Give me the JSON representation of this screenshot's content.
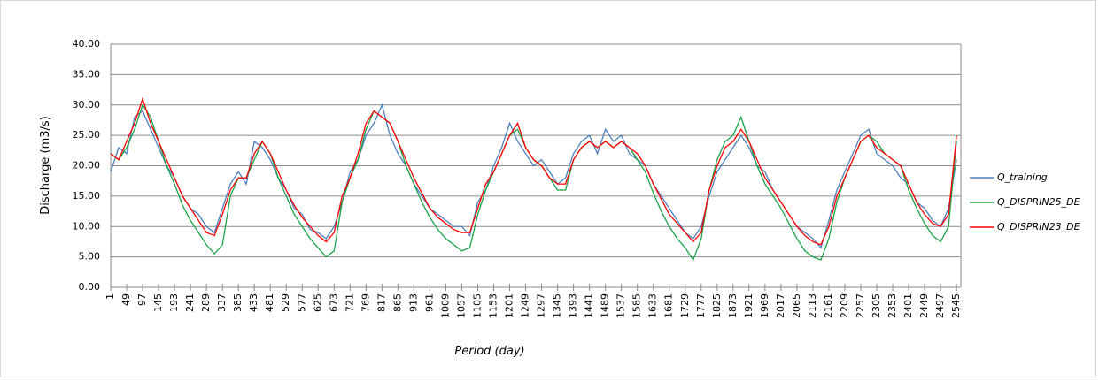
{
  "chart_data": {
    "type": "line",
    "y_label": "Discharge (m3/s)",
    "x_label": "Period (day)",
    "x": [
      1,
      25,
      49,
      73,
      97,
      121,
      145,
      169,
      193,
      217,
      241,
      265,
      289,
      313,
      337,
      361,
      385,
      409,
      433,
      457,
      481,
      505,
      529,
      553,
      577,
      601,
      625,
      649,
      673,
      697,
      721,
      745,
      769,
      793,
      817,
      841,
      865,
      889,
      913,
      937,
      961,
      985,
      1009,
      1033,
      1057,
      1081,
      1105,
      1129,
      1153,
      1177,
      1201,
      1225,
      1249,
      1273,
      1297,
      1321,
      1345,
      1369,
      1393,
      1417,
      1441,
      1465,
      1489,
      1513,
      1537,
      1561,
      1585,
      1609,
      1633,
      1657,
      1681,
      1705,
      1729,
      1753,
      1777,
      1801,
      1825,
      1849,
      1873,
      1897,
      1921,
      1945,
      1969,
      1993,
      2017,
      2041,
      2065,
      2089,
      2113,
      2137,
      2161,
      2185,
      2209,
      2233,
      2257,
      2281,
      2305,
      2329,
      2353,
      2377,
      2401,
      2425,
      2449,
      2473,
      2497,
      2521,
      2545
    ],
    "series": [
      {
        "name": "Q_training",
        "color": "#4f81bd",
        "values": [
          19,
          23,
          22,
          28,
          29,
          26,
          23,
          20,
          18,
          15,
          13,
          12,
          10,
          9,
          13,
          17,
          19,
          17,
          24,
          23,
          21,
          18,
          16,
          13,
          12,
          9.5,
          9,
          8,
          10,
          14,
          19,
          21,
          25,
          27,
          30,
          25,
          22,
          20,
          17,
          15,
          13,
          12,
          11,
          10,
          10,
          8.5,
          14,
          16,
          20,
          23,
          27,
          24,
          22,
          20,
          21,
          19,
          17,
          18,
          22,
          24,
          25,
          22,
          26,
          24,
          25,
          22,
          21,
          20,
          17,
          15,
          13,
          11,
          9,
          8,
          10,
          15,
          19,
          21,
          23,
          25,
          23,
          20,
          19,
          16,
          14,
          12,
          10,
          9,
          8,
          6.5,
          11,
          16,
          19,
          22,
          25,
          26,
          22,
          21,
          20,
          18,
          17,
          14,
          13,
          11,
          10,
          13,
          21
        ]
      },
      {
        "name": "Q_DISPRIN25_DE",
        "color": "#1aa34a",
        "values": [
          22,
          21,
          23,
          26,
          30,
          28,
          24,
          20,
          17,
          13.5,
          11,
          9,
          7,
          5.5,
          7,
          15,
          18,
          18,
          21,
          24,
          22,
          18,
          15,
          12,
          10,
          8,
          6.5,
          5,
          6,
          14,
          18,
          21,
          26,
          29,
          28,
          27,
          24,
          20,
          17,
          14,
          11.5,
          9.5,
          8,
          7,
          6,
          6.5,
          12,
          16,
          19,
          22,
          25,
          26,
          23,
          21,
          20,
          18,
          16,
          16,
          21,
          23,
          24,
          23,
          24,
          23,
          24,
          23,
          21,
          19,
          15.5,
          12.5,
          10,
          8,
          6.5,
          4.5,
          8,
          16,
          21,
          24,
          25,
          28,
          24,
          20,
          17,
          15,
          13,
          10.5,
          8,
          6,
          5,
          4.5,
          8,
          14,
          18,
          21,
          24,
          25,
          24,
          22,
          21,
          20,
          16,
          13,
          10.5,
          8.5,
          7.5,
          10,
          24
        ]
      },
      {
        "name": "Q_DISPRIN23_DE",
        "color": "#ff0000",
        "values": [
          22,
          21,
          24,
          27,
          31,
          27,
          24,
          21,
          18,
          15,
          13,
          11,
          9,
          8.5,
          12,
          16,
          18,
          18,
          22,
          24,
          22,
          19,
          16,
          13.5,
          11.5,
          10,
          8.5,
          7.5,
          9,
          15,
          18,
          22,
          27,
          29,
          28,
          27,
          24,
          21,
          18,
          15.5,
          13,
          11.5,
          10.5,
          9.5,
          9,
          9,
          13,
          17,
          19,
          22,
          25,
          27,
          23,
          21,
          20,
          18,
          17,
          17,
          21,
          23,
          24,
          23,
          24,
          23,
          24,
          23,
          22,
          20,
          17,
          14.5,
          12,
          10.5,
          9,
          7.5,
          9,
          16,
          20,
          23,
          24,
          26,
          24,
          21,
          18,
          16,
          14,
          12,
          10,
          8.5,
          7.5,
          7,
          10,
          15,
          18,
          21,
          24,
          25,
          23,
          22,
          21,
          20,
          17,
          14,
          12,
          10.5,
          10,
          12,
          25
        ]
      }
    ],
    "xlim": [
      1,
      2558
    ],
    "xticks": [
      1,
      49,
      97,
      145,
      193,
      241,
      289,
      337,
      385,
      433,
      481,
      529,
      577,
      625,
      673,
      721,
      769,
      817,
      865,
      913,
      961,
      1009,
      1057,
      1105,
      1153,
      1201,
      1249,
      1297,
      1345,
      1393,
      1441,
      1489,
      1537,
      1585,
      1633,
      1681,
      1729,
      1777,
      1825,
      1873,
      1921,
      1969,
      2017,
      2065,
      2113,
      2161,
      2209,
      2257,
      2305,
      2353,
      2401,
      2449,
      2497,
      2545
    ],
    "ylim": [
      0,
      40
    ],
    "yticks": [
      {
        "value": 0,
        "label": "0.00"
      },
      {
        "value": 5,
        "label": "5.00"
      },
      {
        "value": 10,
        "label": "10.00"
      },
      {
        "value": 15,
        "label": "15.00"
      },
      {
        "value": 20,
        "label": "20.00"
      },
      {
        "value": 25,
        "label": "25.00"
      },
      {
        "value": 30,
        "label": "30.00"
      },
      {
        "value": 35,
        "label": "35.00"
      },
      {
        "value": 40,
        "label": "40.00"
      }
    ],
    "grid": true,
    "legend": "right"
  }
}
